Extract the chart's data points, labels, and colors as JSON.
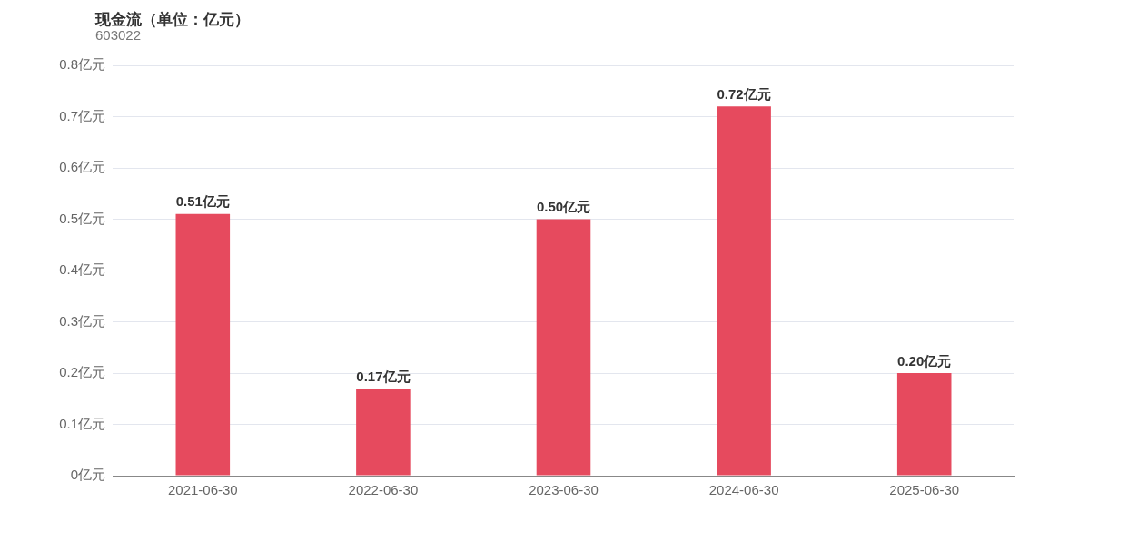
{
  "chart_data": {
    "type": "bar",
    "title": "现金流（单位：亿元）",
    "subtitle": "603022",
    "categories": [
      "2021-06-30",
      "2022-06-30",
      "2023-06-30",
      "2024-06-30",
      "2025-06-30"
    ],
    "values": [
      0.51,
      0.17,
      0.5,
      0.72,
      0.2
    ],
    "value_labels": [
      "0.51亿元",
      "0.17亿元",
      "0.50亿元",
      "0.72亿元",
      "0.20亿元"
    ],
    "color": "#e64a5e",
    "ylim": [
      0,
      0.8
    ],
    "yticks": [
      {
        "value": 0,
        "label": "0亿元"
      },
      {
        "value": 0.1,
        "label": "0.1亿元"
      },
      {
        "value": 0.2,
        "label": "0.2亿元"
      },
      {
        "value": 0.3,
        "label": "0.3亿元"
      },
      {
        "value": 0.4,
        "label": "0.4亿元"
      },
      {
        "value": 0.5,
        "label": "0.5亿元"
      },
      {
        "value": 0.6,
        "label": "0.6亿元"
      },
      {
        "value": 0.7,
        "label": "0.7亿元"
      },
      {
        "value": 0.8,
        "label": "0.8亿元"
      }
    ],
    "grid": "y",
    "legend": false
  }
}
